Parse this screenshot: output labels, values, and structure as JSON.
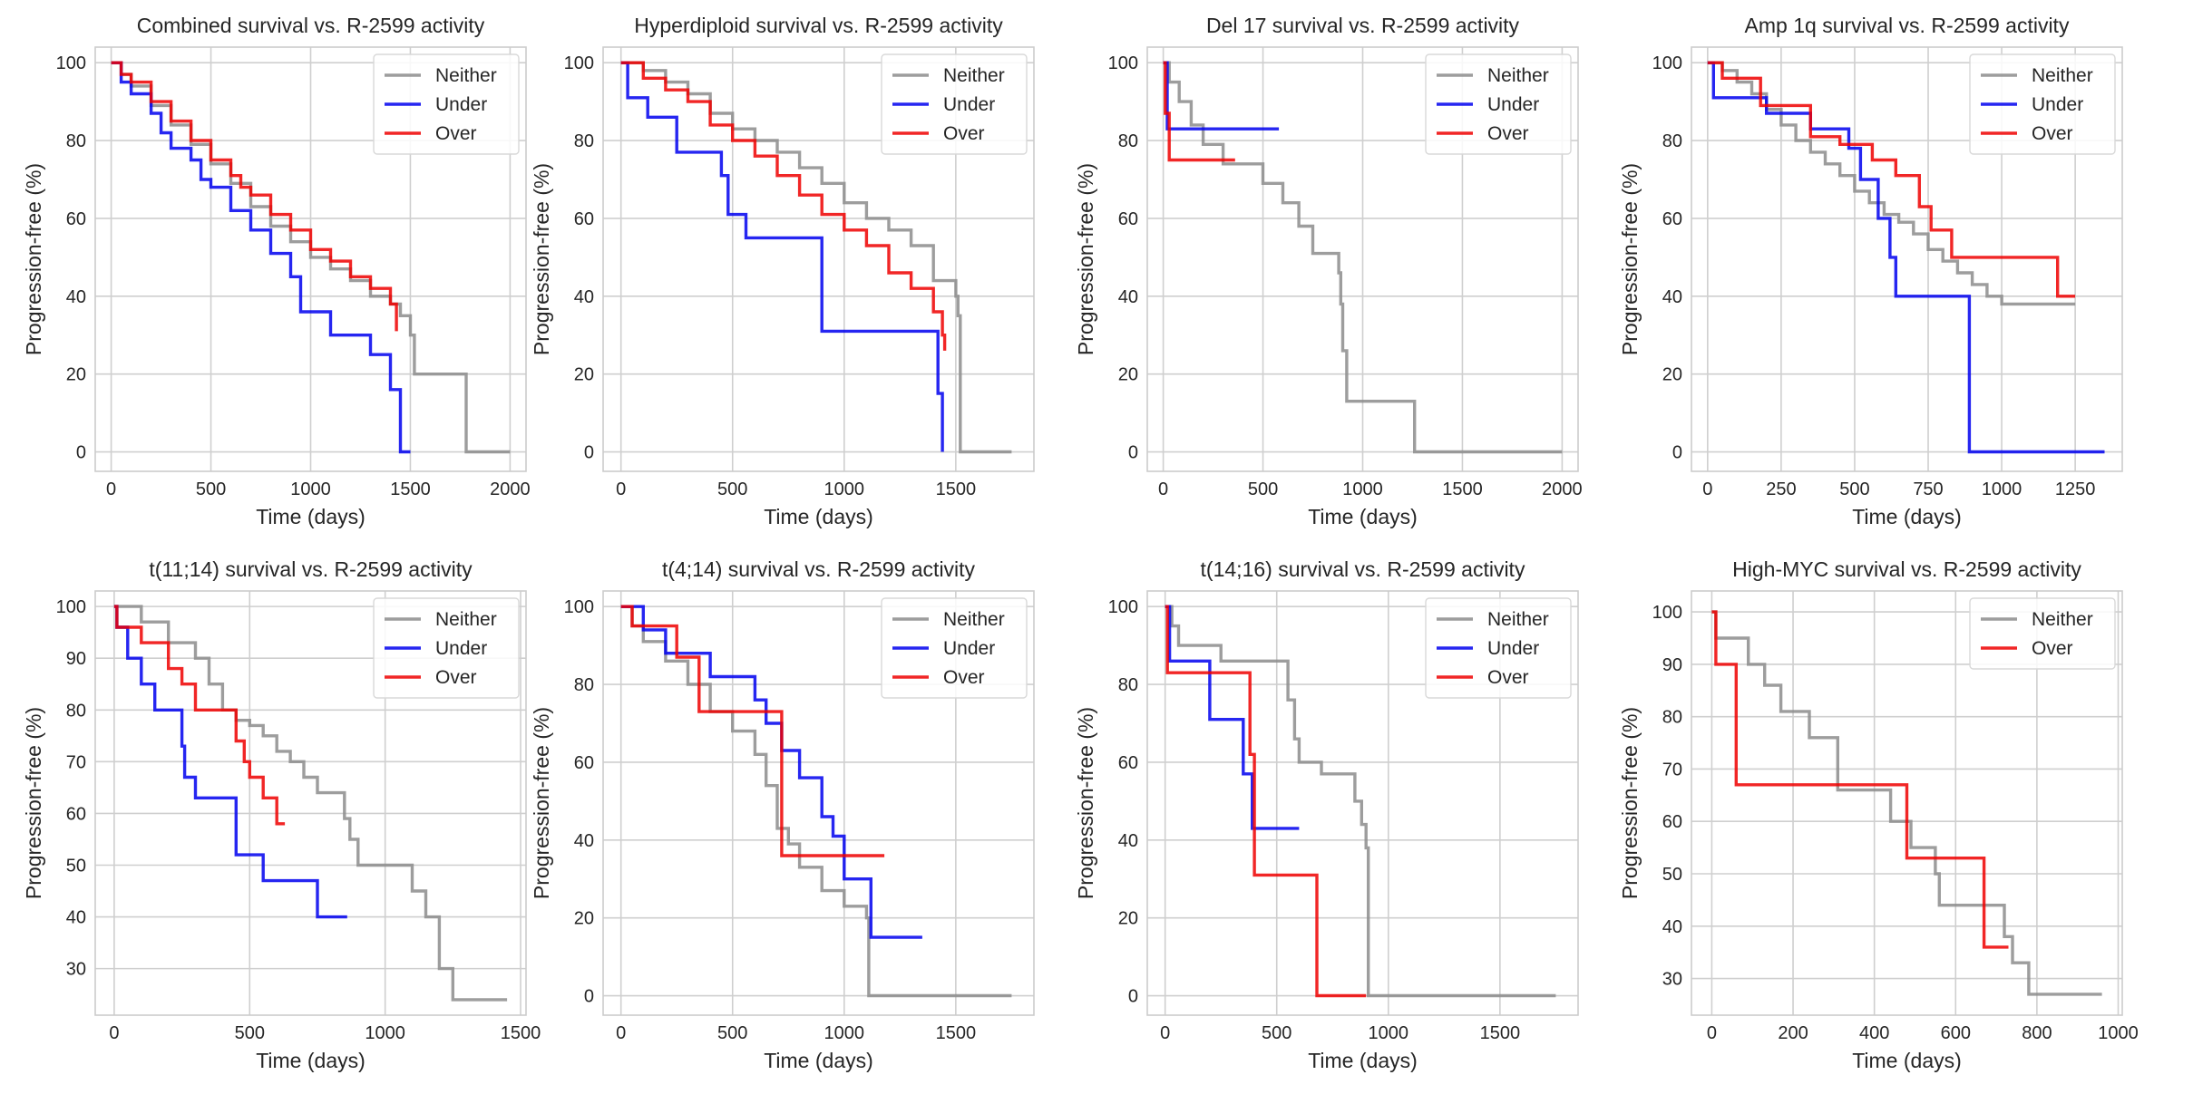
{
  "colors": {
    "Neither": "#8c8c8c",
    "Under": "#0000ee",
    "Over": "#ee0000",
    "grid": "#cfcfcf",
    "frame": "#cccccc"
  },
  "chart_data": [
    {
      "type": "line",
      "title": "Combined survival vs. R-2599 activity",
      "xlabel": "Time (days)",
      "ylabel": "Progression-free (%)",
      "xlim": [
        -80,
        2080
      ],
      "ylim": [
        -5,
        104
      ],
      "xticks": [
        0,
        500,
        1000,
        1500,
        2000
      ],
      "yticks": [
        0,
        20,
        40,
        60,
        80,
        100
      ],
      "grid": true,
      "legend": "top-right",
      "series": [
        {
          "name": "Neither",
          "x": [
            0,
            50,
            100,
            200,
            300,
            400,
            500,
            600,
            700,
            800,
            900,
            1000,
            1100,
            1200,
            1300,
            1400,
            1450,
            1500,
            1520,
            1760,
            1780,
            2000
          ],
          "y": [
            100,
            97,
            94,
            89,
            84,
            79,
            74,
            69,
            63,
            58,
            54,
            50,
            47,
            44,
            40,
            38,
            35,
            30,
            20,
            20,
            0,
            0
          ]
        },
        {
          "name": "Under",
          "x": [
            0,
            50,
            100,
            200,
            250,
            300,
            400,
            450,
            500,
            600,
            700,
            800,
            900,
            950,
            1100,
            1300,
            1400,
            1450,
            1500
          ],
          "y": [
            100,
            95,
            92,
            87,
            82,
            78,
            75,
            70,
            68,
            62,
            57,
            51,
            45,
            36,
            30,
            25,
            16,
            0,
            0
          ]
        },
        {
          "name": "Over",
          "x": [
            0,
            50,
            100,
            200,
            300,
            400,
            500,
            600,
            650,
            700,
            800,
            900,
            1000,
            1100,
            1200,
            1300,
            1400,
            1430
          ],
          "y": [
            100,
            97,
            95,
            90,
            85,
            80,
            75,
            71,
            68,
            66,
            61,
            57,
            52,
            49,
            45,
            42,
            38,
            31
          ]
        }
      ]
    },
    {
      "type": "line",
      "title": "Hyperdiploid survival vs. R-2599 activity",
      "xlabel": "Time (days)",
      "ylabel": "Progression-free (%)",
      "xlim": [
        -80,
        1850
      ],
      "ylim": [
        -5,
        104
      ],
      "xticks": [
        0,
        500,
        1000,
        1500
      ],
      "yticks": [
        0,
        20,
        40,
        60,
        80,
        100
      ],
      "grid": true,
      "legend": "top-right",
      "series": [
        {
          "name": "Neither",
          "x": [
            0,
            100,
            200,
            300,
            400,
            500,
            600,
            700,
            800,
            900,
            1000,
            1100,
            1200,
            1300,
            1400,
            1500,
            1510,
            1520,
            1750
          ],
          "y": [
            100,
            98,
            95,
            92,
            87,
            83,
            80,
            77,
            73,
            69,
            64,
            60,
            57,
            53,
            44,
            40,
            35,
            0,
            0
          ]
        },
        {
          "name": "Under",
          "x": [
            0,
            30,
            120,
            250,
            450,
            480,
            560,
            860,
            900,
            1320,
            1420,
            1440
          ],
          "y": [
            100,
            91,
            86,
            77,
            71,
            61,
            55,
            55,
            31,
            31,
            15,
            0
          ]
        },
        {
          "name": "Over",
          "x": [
            0,
            100,
            200,
            300,
            400,
            500,
            600,
            700,
            800,
            900,
            1000,
            1100,
            1200,
            1300,
            1400,
            1440,
            1450
          ],
          "y": [
            100,
            96,
            93,
            90,
            84,
            80,
            76,
            71,
            66,
            61,
            57,
            53,
            46,
            42,
            36,
            30,
            26
          ]
        }
      ]
    },
    {
      "type": "line",
      "title": "Del 17 survival vs. R-2599 activity",
      "xlabel": "Time (days)",
      "ylabel": "Progression-free (%)",
      "xlim": [
        -80,
        2080
      ],
      "ylim": [
        -5,
        104
      ],
      "xticks": [
        0,
        500,
        1000,
        1500,
        2000
      ],
      "yticks": [
        0,
        20,
        40,
        60,
        80,
        100
      ],
      "grid": true,
      "legend": "top-right",
      "series": [
        {
          "name": "Neither",
          "x": [
            0,
            30,
            80,
            140,
            200,
            300,
            500,
            600,
            680,
            750,
            880,
            890,
            900,
            920,
            1000,
            1250,
            1260,
            2000
          ],
          "y": [
            100,
            95,
            90,
            84,
            79,
            74,
            69,
            64,
            58,
            51,
            46,
            38,
            26,
            13,
            13,
            13,
            0,
            0
          ]
        },
        {
          "name": "Under",
          "x": [
            0,
            20,
            580
          ],
          "y": [
            100,
            83,
            83
          ]
        },
        {
          "name": "Over",
          "x": [
            0,
            10,
            30,
            360
          ],
          "y": [
            100,
            87,
            75,
            75
          ]
        }
      ]
    },
    {
      "type": "line",
      "title": "Amp 1q survival vs. R-2599 activity",
      "xlabel": "Time (days)",
      "ylabel": "Progression-free (%)",
      "xlim": [
        -55,
        1410
      ],
      "ylim": [
        -5,
        104
      ],
      "xticks": [
        0,
        250,
        500,
        750,
        1000,
        1250
      ],
      "yticks": [
        0,
        20,
        40,
        60,
        80,
        100
      ],
      "grid": true,
      "legend": "top-right",
      "series": [
        {
          "name": "Neither",
          "x": [
            0,
            50,
            100,
            150,
            200,
            250,
            300,
            350,
            400,
            450,
            500,
            550,
            600,
            650,
            700,
            750,
            800,
            850,
            900,
            950,
            1000,
            1200,
            1250
          ],
          "y": [
            100,
            98,
            95,
            92,
            88,
            84,
            80,
            77,
            74,
            71,
            67,
            64,
            61,
            59,
            56,
            52,
            49,
            46,
            43,
            40,
            38,
            38,
            38
          ]
        },
        {
          "name": "Under",
          "x": [
            0,
            20,
            200,
            350,
            480,
            520,
            580,
            620,
            640,
            880,
            890,
            1350
          ],
          "y": [
            100,
            91,
            87,
            83,
            78,
            70,
            60,
            50,
            40,
            40,
            0,
            0
          ]
        },
        {
          "name": "Over",
          "x": [
            0,
            50,
            180,
            350,
            450,
            560,
            640,
            720,
            760,
            830,
            1180,
            1190,
            1250
          ],
          "y": [
            100,
            96,
            89,
            81,
            79,
            75,
            71,
            63,
            57,
            50,
            50,
            40,
            40
          ]
        }
      ]
    },
    {
      "type": "line",
      "title": "t(11;14) survival vs. R-2599 activity",
      "xlabel": "Time (days)",
      "ylabel": "Progression-free (%)",
      "xlim": [
        -70,
        1520
      ],
      "ylim": [
        21,
        103
      ],
      "xticks": [
        0,
        500,
        1000,
        1500
      ],
      "yticks": [
        30,
        40,
        50,
        60,
        70,
        80,
        90,
        100
      ],
      "grid": true,
      "legend": "top-right",
      "series": [
        {
          "name": "Neither",
          "x": [
            0,
            100,
            200,
            300,
            350,
            400,
            450,
            500,
            550,
            600,
            650,
            700,
            750,
            850,
            870,
            900,
            1050,
            1100,
            1150,
            1200,
            1250,
            1450
          ],
          "y": [
            100,
            97,
            93,
            90,
            85,
            80,
            78,
            77,
            75,
            72,
            70,
            67,
            64,
            59,
            55,
            50,
            50,
            45,
            40,
            30,
            24,
            24
          ]
        },
        {
          "name": "Under",
          "x": [
            0,
            10,
            50,
            100,
            150,
            250,
            260,
            300,
            400,
            450,
            550,
            750,
            860
          ],
          "y": [
            100,
            96,
            90,
            85,
            80,
            73,
            67,
            63,
            63,
            52,
            47,
            40,
            40
          ]
        },
        {
          "name": "Over",
          "x": [
            0,
            10,
            100,
            200,
            250,
            300,
            400,
            450,
            480,
            500,
            550,
            600,
            630
          ],
          "y": [
            100,
            96,
            93,
            88,
            85,
            80,
            80,
            74,
            70,
            67,
            63,
            58,
            58
          ]
        }
      ]
    },
    {
      "type": "line",
      "title": "t(4;14) survival vs. R-2599 activity",
      "xlabel": "Time (days)",
      "ylabel": "Progression-free (%)",
      "xlim": [
        -80,
        1850
      ],
      "ylim": [
        -5,
        104
      ],
      "xticks": [
        0,
        500,
        1000,
        1500
      ],
      "yticks": [
        0,
        20,
        40,
        60,
        80,
        100
      ],
      "grid": true,
      "legend": "top-right",
      "series": [
        {
          "name": "Neither",
          "x": [
            0,
            50,
            100,
            200,
            300,
            400,
            500,
            600,
            650,
            700,
            750,
            800,
            900,
            1000,
            1100,
            1110,
            1750
          ],
          "y": [
            100,
            95,
            91,
            86,
            80,
            73,
            68,
            62,
            54,
            43,
            39,
            33,
            27,
            23,
            20,
            0,
            0
          ]
        },
        {
          "name": "Under",
          "x": [
            0,
            100,
            200,
            400,
            600,
            650,
            720,
            800,
            900,
            950,
            1000,
            1100,
            1120,
            1350
          ],
          "y": [
            100,
            94,
            88,
            82,
            76,
            70,
            63,
            56,
            46,
            41,
            30,
            30,
            15,
            15
          ]
        },
        {
          "name": "Over",
          "x": [
            0,
            50,
            250,
            350,
            700,
            720,
            1180
          ],
          "y": [
            100,
            95,
            87,
            73,
            73,
            36,
            36
          ]
        }
      ]
    },
    {
      "type": "line",
      "title": "t(14;16) survival vs. R-2599 activity",
      "xlabel": "Time (days)",
      "ylabel": "Progression-free (%)",
      "xlim": [
        -80,
        1850
      ],
      "ylim": [
        -5,
        104
      ],
      "xticks": [
        0,
        500,
        1000,
        1500
      ],
      "yticks": [
        0,
        20,
        40,
        60,
        80,
        100
      ],
      "grid": true,
      "legend": "top-right",
      "series": [
        {
          "name": "Neither",
          "x": [
            0,
            30,
            60,
            250,
            550,
            580,
            600,
            700,
            850,
            880,
            900,
            910,
            1750
          ],
          "y": [
            100,
            95,
            90,
            86,
            76,
            66,
            60,
            57,
            50,
            44,
            38,
            0,
            0
          ]
        },
        {
          "name": "Under",
          "x": [
            0,
            20,
            200,
            350,
            390,
            600
          ],
          "y": [
            100,
            86,
            71,
            57,
            43,
            43
          ]
        },
        {
          "name": "Over",
          "x": [
            0,
            10,
            370,
            380,
            400,
            670,
            680,
            900
          ],
          "y": [
            100,
            83,
            83,
            62,
            31,
            31,
            0,
            0
          ]
        }
      ]
    },
    {
      "type": "line",
      "title": "High-MYC survival vs. R-2599 activity",
      "xlabel": "Time (days)",
      "ylabel": "Progression-free (%)",
      "xlim": [
        -50,
        1010
      ],
      "ylim": [
        23,
        104
      ],
      "xticks": [
        0,
        200,
        400,
        600,
        800,
        1000
      ],
      "yticks": [
        30,
        40,
        50,
        60,
        70,
        80,
        90,
        100
      ],
      "grid": true,
      "legend": "top-right",
      "series": [
        {
          "name": "Neither",
          "x": [
            0,
            10,
            90,
            130,
            170,
            240,
            310,
            440,
            490,
            550,
            560,
            720,
            740,
            780,
            960
          ],
          "y": [
            100,
            95,
            90,
            86,
            81,
            76,
            66,
            60,
            55,
            50,
            44,
            38,
            33,
            27,
            27
          ]
        },
        {
          "name": "Over",
          "x": [
            0,
            10,
            60,
            480,
            670,
            730
          ],
          "y": [
            100,
            90,
            67,
            53,
            36,
            36
          ]
        }
      ]
    }
  ]
}
